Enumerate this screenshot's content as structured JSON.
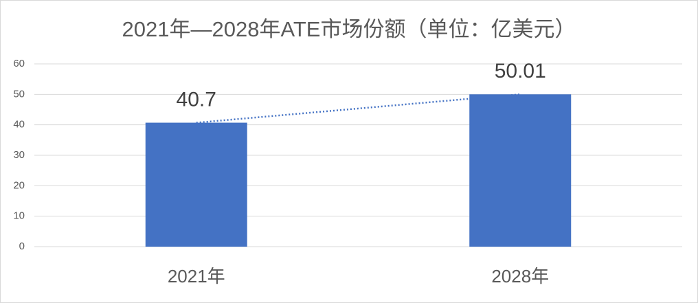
{
  "chart_data": {
    "type": "bar",
    "title": "2021年—2028年ATE市场份额（单位：亿美元）",
    "categories": [
      "2021年",
      "2028年"
    ],
    "values": [
      40.7,
      50.01
    ],
    "color": "#4472c4",
    "ylim": [
      0,
      60
    ],
    "yticks": [
      0,
      10,
      20,
      30,
      40,
      50,
      60
    ],
    "grid": true,
    "trendline": true
  }
}
